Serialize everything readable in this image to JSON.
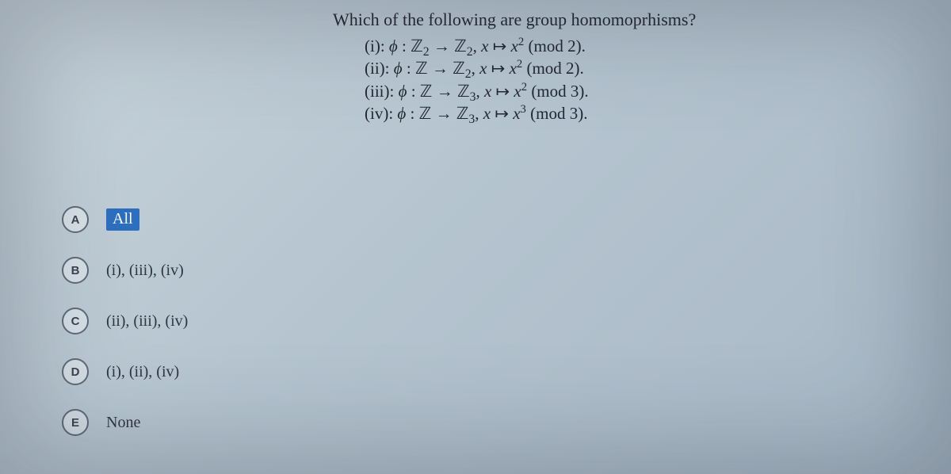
{
  "question": {
    "title": "Which of the following are group homomoprhisms?",
    "statements": {
      "i": "(i): ϕ : ℤ₂ → ℤ₂, x ↦ x² (mod 2).",
      "ii": "(ii): ϕ : ℤ → ℤ₂, x ↦ x² (mod 2).",
      "iii": "(iii): ϕ : ℤ → ℤ₃, x ↦ x² (mod 3).",
      "iv": "(iv): ϕ : ℤ → ℤ₃, x ↦ x³ (mod 3)."
    }
  },
  "options": {
    "a": {
      "letter": "A",
      "label": "All",
      "selected": true
    },
    "b": {
      "letter": "B",
      "label": "(i), (iii), (iv)",
      "selected": false
    },
    "c": {
      "letter": "C",
      "label": "(ii), (iii), (iv)",
      "selected": false
    },
    "d": {
      "letter": "D",
      "label": "(i), (ii), (iv)",
      "selected": false
    },
    "e": {
      "letter": "E",
      "label": "None",
      "selected": false
    }
  },
  "style": {
    "background_gradient": [
      "#c8d4dc",
      "#b5c4cf",
      "#a8b8c5"
    ],
    "text_color": "#2a2f38",
    "question_title_fontsize": 22,
    "statement_fontsize": 21,
    "option_label_fontsize": 20,
    "option_circle_border": "#5f6b78",
    "option_circle_bg": "rgba(235,240,244,0.55)",
    "selected_bg": "#2d6fbf",
    "selected_fg": "#ffffff",
    "font_family": "Georgia, Times New Roman, serif"
  }
}
